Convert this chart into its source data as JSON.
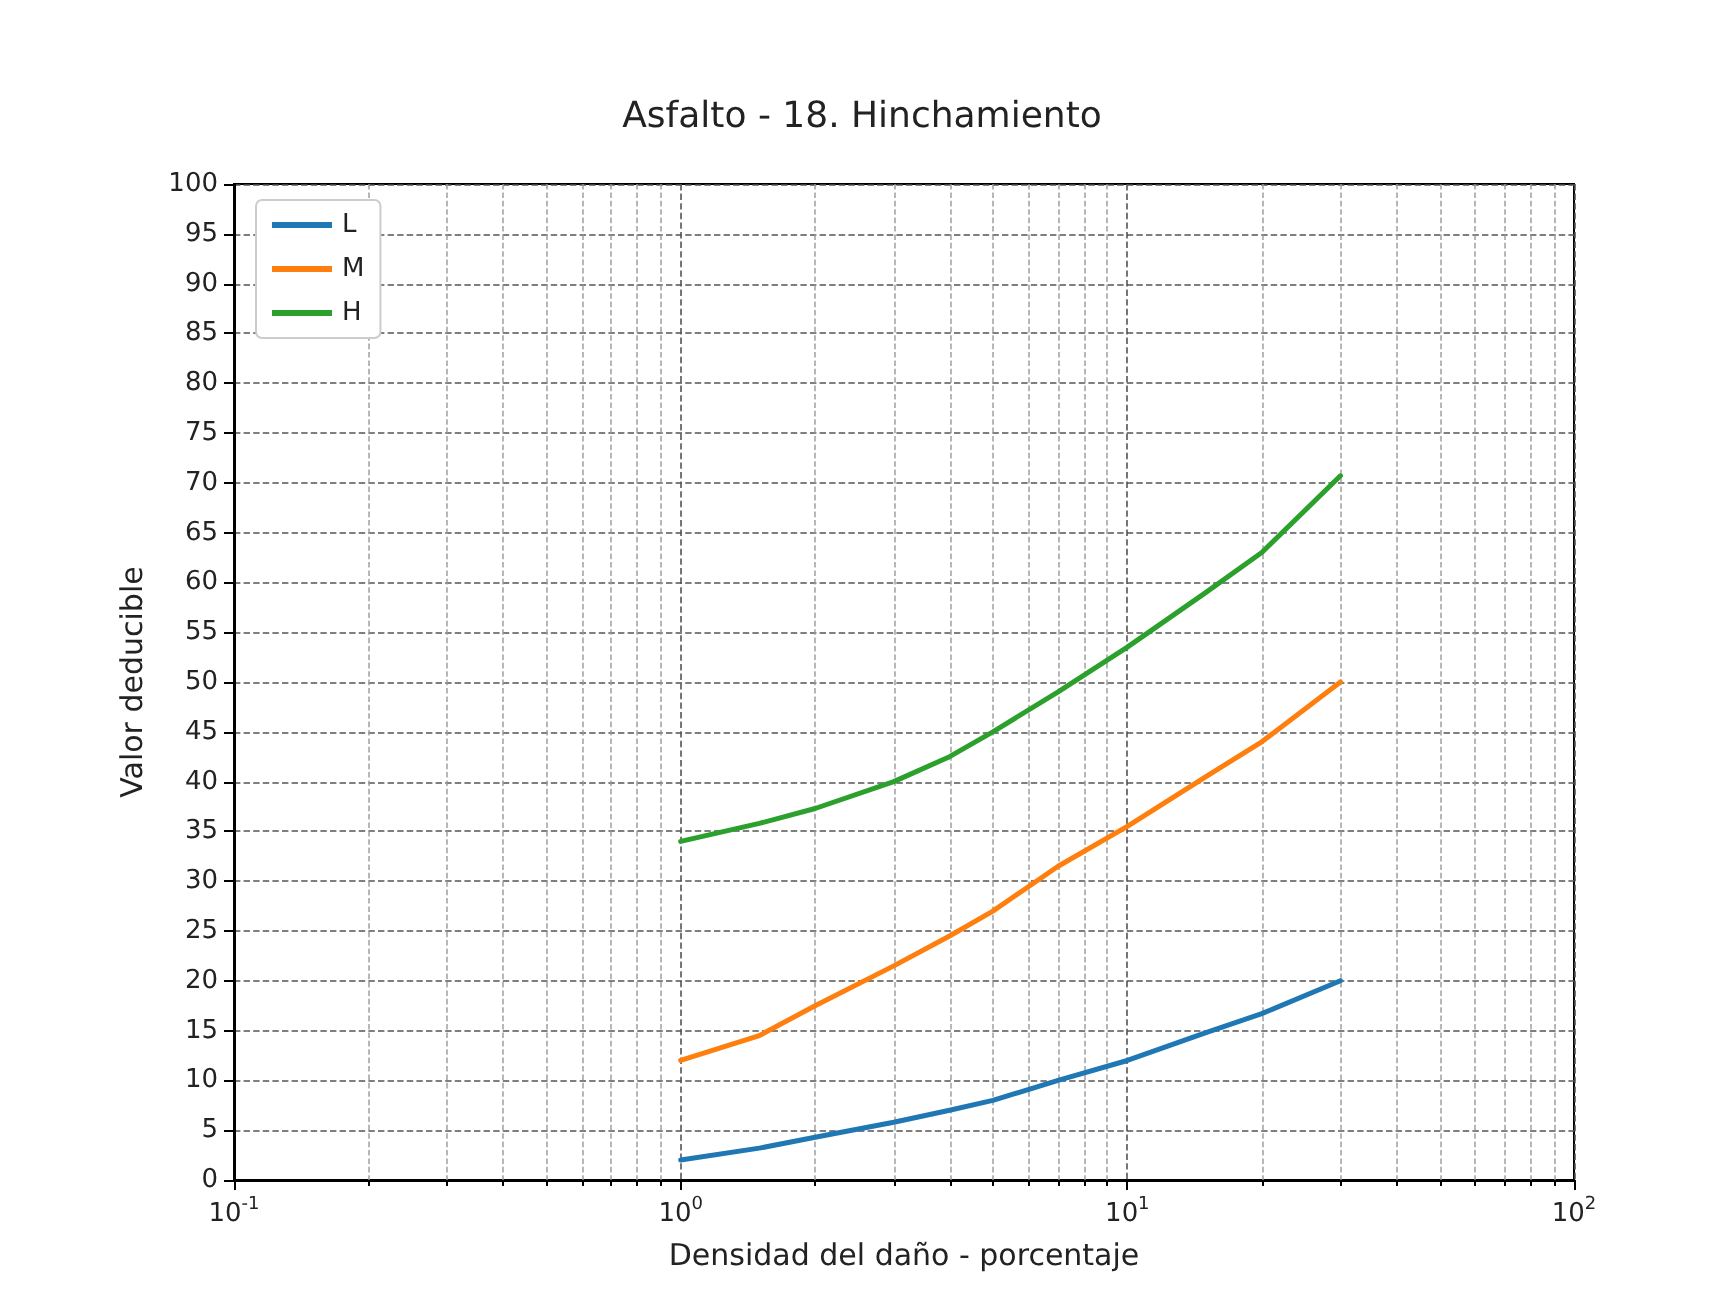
{
  "chart_data": {
    "type": "line",
    "title": "Asfalto - 18. Hinchamiento",
    "xlabel": "Densidad del daño - porcentaje",
    "ylabel": "Valor deducible",
    "log": "x",
    "grid": true,
    "legend": "top left",
    "xlim": [
      0.1,
      100
    ],
    "xticks": [
      {
        "value": 0.1,
        "label": "10$^{-1}$"
      },
      {
        "value": 1,
        "label": "10$^{0}$"
      },
      {
        "value": 10,
        "label": "10$^{1}$"
      },
      {
        "value": 100,
        "label": "10$^{2}$"
      }
    ],
    "ylim": [
      0,
      100
    ],
    "yticks": [
      0,
      5,
      10,
      15,
      20,
      25,
      30,
      35,
      40,
      45,
      50,
      55,
      60,
      65,
      70,
      75,
      80,
      85,
      90,
      95,
      100
    ],
    "x": [
      1,
      1.5,
      2,
      3,
      4,
      5,
      7,
      10,
      15,
      20,
      30
    ],
    "series": [
      {
        "name": "L",
        "color": "#1f77b4",
        "values": [
          2,
          3.2,
          4.3,
          5.8,
          7,
          8,
          10,
          12,
          14.8,
          16.7,
          20
        ]
      },
      {
        "name": "M",
        "color": "#ff7f0e",
        "values": [
          12,
          14.5,
          17.5,
          21.5,
          24.5,
          27,
          31.5,
          35.5,
          40.5,
          44,
          50
        ]
      },
      {
        "name": "H",
        "color": "#2ca02c",
        "values": [
          34,
          35.8,
          37.3,
          40,
          42.5,
          45,
          49,
          53.5,
          59,
          63,
          70.7
        ]
      }
    ]
  }
}
